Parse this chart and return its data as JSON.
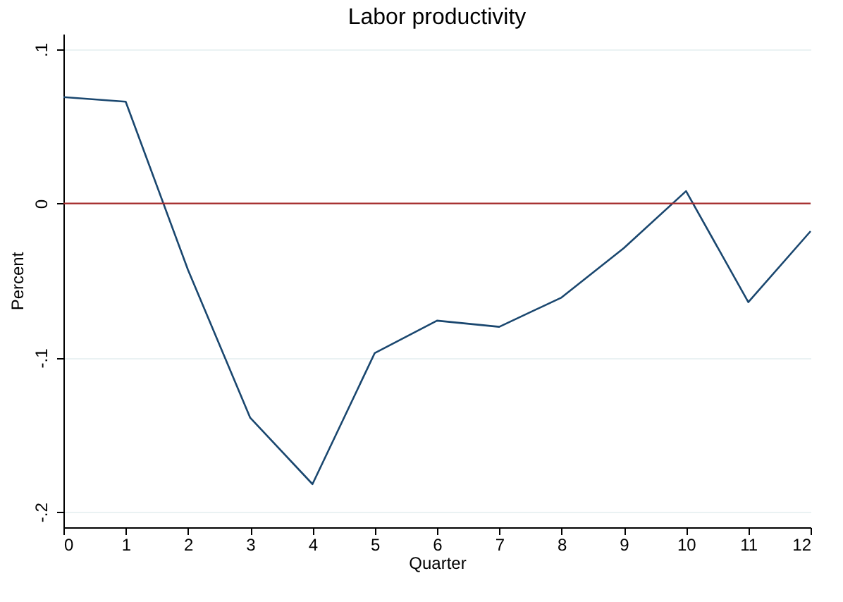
{
  "chart_data": {
    "type": "line",
    "title": "Labor productivity",
    "xlabel": "Quarter",
    "ylabel": "Percent",
    "x": [
      0,
      1,
      2,
      3,
      4,
      5,
      6,
      7,
      8,
      9,
      10,
      11,
      12
    ],
    "series": [
      {
        "color": "#1a476f",
        "values": [
          0.069,
          0.066,
          -0.043,
          -0.139,
          -0.182,
          -0.097,
          -0.076,
          -0.08,
          -0.061,
          -0.029,
          0.008,
          -0.064,
          -0.018
        ]
      }
    ],
    "xlim": [
      0,
      12
    ],
    "xticks": [
      0,
      1,
      2,
      3,
      4,
      5,
      6,
      7,
      8,
      9,
      10,
      11,
      12
    ],
    "ylim": [
      -0.21,
      0.11
    ],
    "yticks": [
      {
        "value": -0.2,
        "label": "-.2"
      },
      {
        "value": -0.1,
        "label": "-.1"
      },
      0,
      {
        "value": 0.1,
        "label": ".1"
      }
    ],
    "ref_lines": [
      {
        "axis": "y",
        "value": 0,
        "color": "#a52a2a"
      }
    ],
    "grid": "y",
    "marker": "none",
    "line_style": "solid"
  }
}
